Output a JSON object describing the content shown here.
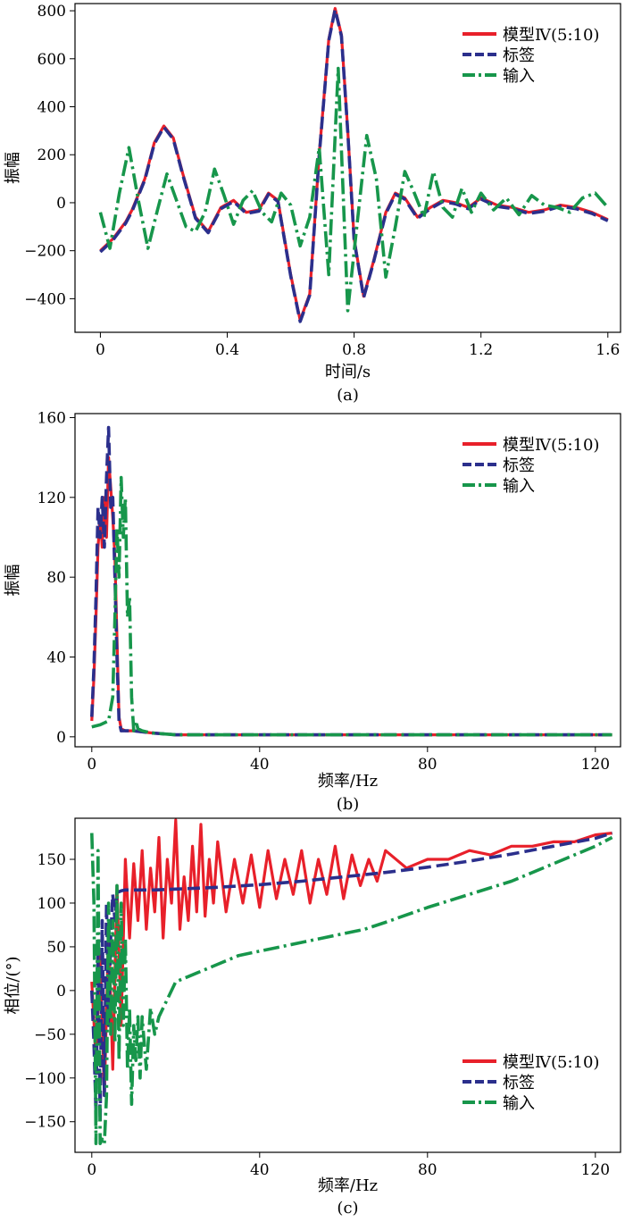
{
  "chart_data": [
    {
      "type": "line",
      "caption": "(a)",
      "xlabel": "时间/s",
      "ylabel": "振幅",
      "xlim": [
        -0.08,
        1.64
      ],
      "ylim": [
        -540,
        830
      ],
      "xticks": [
        0,
        0.4,
        0.8,
        1.2,
        1.6
      ],
      "xtick_labels": [
        "0",
        "0.4",
        "0.8",
        "1.2",
        "1.6"
      ],
      "yticks": [
        -400,
        -200,
        0,
        200,
        400,
        600,
        800
      ],
      "ytick_labels": [
        "−400",
        "−200",
        "0",
        "200",
        "400",
        "600",
        "800"
      ],
      "legend_position": "top-right",
      "legend": [
        "模型Ⅳ(5:10)",
        "标签",
        "输入"
      ],
      "series": [
        {
          "name": "模型Ⅳ(5:10)",
          "color": "#e8202a",
          "style": "solid",
          "x": [
            0,
            0.04,
            0.08,
            0.1,
            0.14,
            0.17,
            0.2,
            0.23,
            0.26,
            0.3,
            0.34,
            0.38,
            0.42,
            0.46,
            0.5,
            0.53,
            0.56,
            0.6,
            0.63,
            0.66,
            0.69,
            0.72,
            0.74,
            0.76,
            0.78,
            0.8,
            0.83,
            0.86,
            0.9,
            0.93,
            0.96,
            1.0,
            1.04,
            1.08,
            1.12,
            1.16,
            1.2,
            1.25,
            1.3,
            1.35,
            1.4,
            1.45,
            1.5,
            1.55,
            1.6
          ],
          "y": [
            -200,
            -150,
            -80,
            -30,
            100,
            250,
            320,
            270,
            120,
            -60,
            -120,
            -20,
            10,
            -40,
            -30,
            40,
            10,
            -300,
            -490,
            -380,
            200,
            680,
            810,
            700,
            300,
            -150,
            -390,
            -250,
            -40,
            40,
            20,
            -60,
            -20,
            10,
            0,
            -20,
            20,
            -10,
            -20,
            -40,
            -30,
            -10,
            -20,
            -40,
            -70
          ]
        },
        {
          "name": "标签",
          "color": "#2b2f8c",
          "style": "dashed",
          "x": [
            0,
            0.04,
            0.08,
            0.1,
            0.14,
            0.17,
            0.2,
            0.23,
            0.26,
            0.3,
            0.34,
            0.38,
            0.42,
            0.46,
            0.5,
            0.53,
            0.56,
            0.6,
            0.63,
            0.66,
            0.69,
            0.72,
            0.74,
            0.76,
            0.78,
            0.8,
            0.83,
            0.86,
            0.9,
            0.93,
            0.96,
            1.0,
            1.04,
            1.08,
            1.12,
            1.16,
            1.2,
            1.25,
            1.3,
            1.35,
            1.4,
            1.45,
            1.5,
            1.55,
            1.6
          ],
          "y": [
            -205,
            -155,
            -85,
            -35,
            95,
            245,
            315,
            265,
            115,
            -65,
            -125,
            -25,
            5,
            -45,
            -35,
            35,
            5,
            -305,
            -495,
            -385,
            195,
            675,
            805,
            695,
            295,
            -155,
            -395,
            -255,
            -45,
            35,
            15,
            -65,
            -25,
            5,
            -5,
            -25,
            15,
            -15,
            -25,
            -45,
            -35,
            -15,
            -25,
            -45,
            -75
          ]
        },
        {
          "name": "输入",
          "color": "#17964b",
          "style": "dashdot",
          "x": [
            0,
            0.03,
            0.06,
            0.09,
            0.12,
            0.15,
            0.18,
            0.21,
            0.24,
            0.27,
            0.3,
            0.33,
            0.36,
            0.39,
            0.42,
            0.45,
            0.48,
            0.51,
            0.54,
            0.57,
            0.6,
            0.63,
            0.66,
            0.69,
            0.72,
            0.75,
            0.78,
            0.81,
            0.84,
            0.87,
            0.9,
            0.93,
            0.96,
            0.99,
            1.02,
            1.05,
            1.08,
            1.11,
            1.14,
            1.17,
            1.2,
            1.24,
            1.28,
            1.32,
            1.36,
            1.4,
            1.44,
            1.48,
            1.52,
            1.56,
            1.6
          ],
          "y": [
            -40,
            -190,
            40,
            230,
            10,
            -190,
            -30,
            120,
            10,
            -100,
            -120,
            -40,
            140,
            30,
            -90,
            10,
            50,
            -40,
            -80,
            40,
            -10,
            -180,
            -60,
            230,
            -300,
            560,
            -450,
            -80,
            280,
            100,
            -310,
            -100,
            130,
            40,
            -60,
            130,
            -20,
            -60,
            60,
            -40,
            40,
            -30,
            20,
            -50,
            30,
            -10,
            -20,
            -40,
            20,
            40,
            -20
          ]
        }
      ]
    },
    {
      "type": "line",
      "caption": "(b)",
      "xlabel": "频率/Hz",
      "ylabel": "振幅",
      "xlim": [
        -4,
        126
      ],
      "ylim": [
        -5,
        162
      ],
      "xticks": [
        0,
        40,
        80,
        120
      ],
      "xtick_labels": [
        "0",
        "40",
        "80",
        "120"
      ],
      "yticks": [
        0,
        40,
        80,
        120,
        160
      ],
      "ytick_labels": [
        "0",
        "40",
        "80",
        "120",
        "160"
      ],
      "legend_position": "top-right",
      "legend": [
        "模型Ⅳ(5:10)",
        "标签",
        "输入"
      ],
      "series": [
        {
          "name": "模型Ⅳ(5:10)",
          "color": "#e8202a",
          "style": "solid",
          "x": [
            0,
            0.5,
            1,
            1.5,
            2,
            2.5,
            3,
            3.5,
            4,
            4.5,
            5,
            5.5,
            6,
            6.5,
            7,
            8,
            10,
            14,
            20,
            40,
            60,
            80,
            100,
            124
          ],
          "y": [
            8,
            30,
            60,
            95,
            110,
            95,
            120,
            100,
            140,
            125,
            110,
            90,
            50,
            10,
            4,
            3,
            3,
            2,
            1,
            1,
            1,
            1,
            1,
            1
          ]
        },
        {
          "name": "标签",
          "color": "#2b2f8c",
          "style": "dashed",
          "x": [
            0,
            0.5,
            1,
            1.5,
            2,
            2.5,
            3,
            3.5,
            4,
            4.5,
            5,
            5.5,
            6,
            6.5,
            7,
            8,
            10,
            14,
            20,
            40,
            60,
            80,
            100,
            124
          ],
          "y": [
            10,
            35,
            70,
            115,
            100,
            120,
            95,
            130,
            155,
            115,
            120,
            80,
            40,
            8,
            3,
            3,
            3,
            2,
            1,
            1,
            1,
            1,
            1,
            1
          ]
        },
        {
          "name": "输入",
          "color": "#17964b",
          "style": "dashdot",
          "x": [
            0,
            2,
            4,
            5,
            5.5,
            6,
            6.5,
            7,
            7.5,
            8,
            8.5,
            9,
            9.5,
            10,
            10.5,
            11,
            12,
            14,
            20,
            40,
            60,
            80,
            100,
            124
          ],
          "y": [
            5,
            6,
            8,
            20,
            60,
            105,
            80,
            130,
            100,
            120,
            60,
            70,
            20,
            3,
            8,
            4,
            3,
            2,
            1,
            1,
            1,
            1,
            1,
            1
          ]
        }
      ]
    },
    {
      "type": "line",
      "caption": "(c)",
      "xlabel": "频率/Hz",
      "ylabel": "相位/(°)",
      "xlim": [
        -4,
        126
      ],
      "ylim": [
        -185,
        197
      ],
      "xticks": [
        0,
        40,
        80,
        120
      ],
      "xtick_labels": [
        "0",
        "40",
        "80",
        "120"
      ],
      "yticks": [
        -150,
        -100,
        -50,
        0,
        50,
        100,
        150
      ],
      "ytick_labels": [
        "−150",
        "−100",
        "−50",
        "0",
        "50",
        "100",
        "150"
      ],
      "legend_position": "bottom-right",
      "legend": [
        "模型Ⅳ(5:10)",
        "标签",
        "输入"
      ],
      "series": [
        {
          "name": "模型Ⅳ(5:10)",
          "color": "#e8202a",
          "style": "solid",
          "x": [
            0,
            1,
            2,
            3,
            4,
            5,
            6,
            7,
            8,
            9,
            10,
            11,
            12,
            13,
            14,
            15,
            16,
            17,
            18,
            19,
            20,
            21,
            22,
            23,
            24,
            25,
            26,
            27,
            28,
            29,
            30,
            32,
            34,
            36,
            38,
            40,
            42,
            44,
            46,
            48,
            50,
            52,
            54,
            56,
            58,
            60,
            62,
            64,
            66,
            68,
            70,
            75,
            80,
            85,
            90,
            95,
            100,
            105,
            110,
            115,
            120,
            124
          ],
          "y": [
            10,
            -80,
            40,
            -120,
            70,
            -90,
            120,
            -40,
            150,
            60,
            145,
            80,
            160,
            70,
            140,
            90,
            175,
            60,
            150,
            100,
            195,
            70,
            130,
            80,
            165,
            90,
            190,
            85,
            150,
            100,
            170,
            90,
            150,
            100,
            155,
            95,
            160,
            105,
            150,
            110,
            160,
            100,
            150,
            110,
            165,
            105,
            155,
            120,
            150,
            125,
            160,
            140,
            150,
            150,
            160,
            155,
            165,
            165,
            170,
            170,
            178,
            180
          ]
        },
        {
          "name": "标签",
          "color": "#2b2f8c",
          "style": "dashed",
          "x": [
            0,
            0.5,
            1,
            1.5,
            2,
            2.5,
            3,
            3.5,
            4,
            4.5,
            5,
            5.5,
            6,
            7,
            8,
            10,
            15,
            20,
            30,
            40,
            50,
            60,
            70,
            80,
            90,
            100,
            110,
            120,
            124
          ],
          "y": [
            0,
            -60,
            -140,
            40,
            -150,
            80,
            -120,
            100,
            -40,
            60,
            110,
            80,
            112,
            114,
            115,
            115,
            115,
            116,
            118,
            121,
            125,
            130,
            135,
            141,
            148,
            156,
            165,
            174,
            180
          ]
        },
        {
          "name": "输入",
          "color": "#17964b",
          "style": "dashdot",
          "x": [
            0,
            0.5,
            1,
            1.5,
            2,
            2.5,
            3,
            3.5,
            4,
            4.5,
            5,
            5.5,
            6,
            6.5,
            7,
            7.5,
            8,
            8.5,
            9,
            9.5,
            10,
            10.5,
            11,
            11.5,
            12,
            13,
            14,
            15,
            16,
            18,
            20,
            25,
            30,
            35,
            40,
            45,
            50,
            55,
            60,
            65,
            70,
            80,
            90,
            100,
            110,
            120,
            124
          ],
          "y": [
            180,
            100,
            -175,
            160,
            -175,
            -170,
            -175,
            -120,
            100,
            -50,
            80,
            -60,
            120,
            -80,
            100,
            -40,
            60,
            -90,
            -20,
            -130,
            -40,
            -80,
            -30,
            -100,
            -30,
            -90,
            -20,
            -50,
            -30,
            -10,
            10,
            20,
            30,
            40,
            45,
            50,
            55,
            60,
            65,
            70,
            78,
            95,
            110,
            125,
            145,
            165,
            175
          ]
        }
      ]
    }
  ]
}
